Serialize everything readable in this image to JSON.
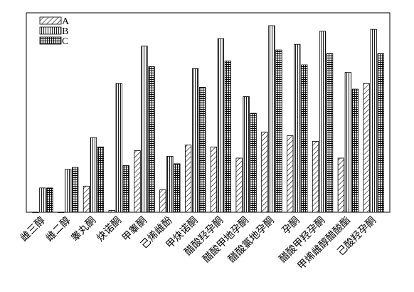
{
  "chart_data": {
    "type": "bar",
    "categories": [
      "雌三醇",
      "雌二醇",
      "睾丸酮",
      "炔诺酮",
      "甲睾酮",
      "己烯雌酚",
      "甲炔诺酮",
      "醋酸羟孕酮",
      "醋酸甲地孕酮",
      "醋酸氯地孕酮",
      "孕酮",
      "醋酸甲羟孕酮",
      "甲烯雌醇醋酸酯",
      "己酸羟孕酮"
    ],
    "series": [
      {
        "name": "A",
        "values": [
          0.0,
          0.0,
          0.14,
          0.01,
          0.33,
          0.12,
          0.36,
          0.35,
          0.29,
          0.43,
          0.41,
          0.38,
          0.29,
          0.69
        ]
      },
      {
        "name": "B",
        "values": [
          0.13,
          0.23,
          0.4,
          0.69,
          0.89,
          0.3,
          0.77,
          0.93,
          0.62,
          1.0,
          0.9,
          0.97,
          0.75,
          0.98
        ]
      },
      {
        "name": "C",
        "values": [
          0.13,
          0.24,
          0.35,
          0.25,
          0.78,
          0.26,
          0.67,
          0.81,
          0.53,
          0.87,
          0.79,
          0.85,
          0.66,
          0.85
        ]
      }
    ],
    "patterns": {
      "A": "diagonal-hatch",
      "B": "vertical-lines",
      "C": "grid"
    },
    "ylim": [
      0,
      1.0
    ],
    "grid": false,
    "legend_position": "top-left",
    "title": "",
    "xlabel": "",
    "ylabel": ""
  }
}
